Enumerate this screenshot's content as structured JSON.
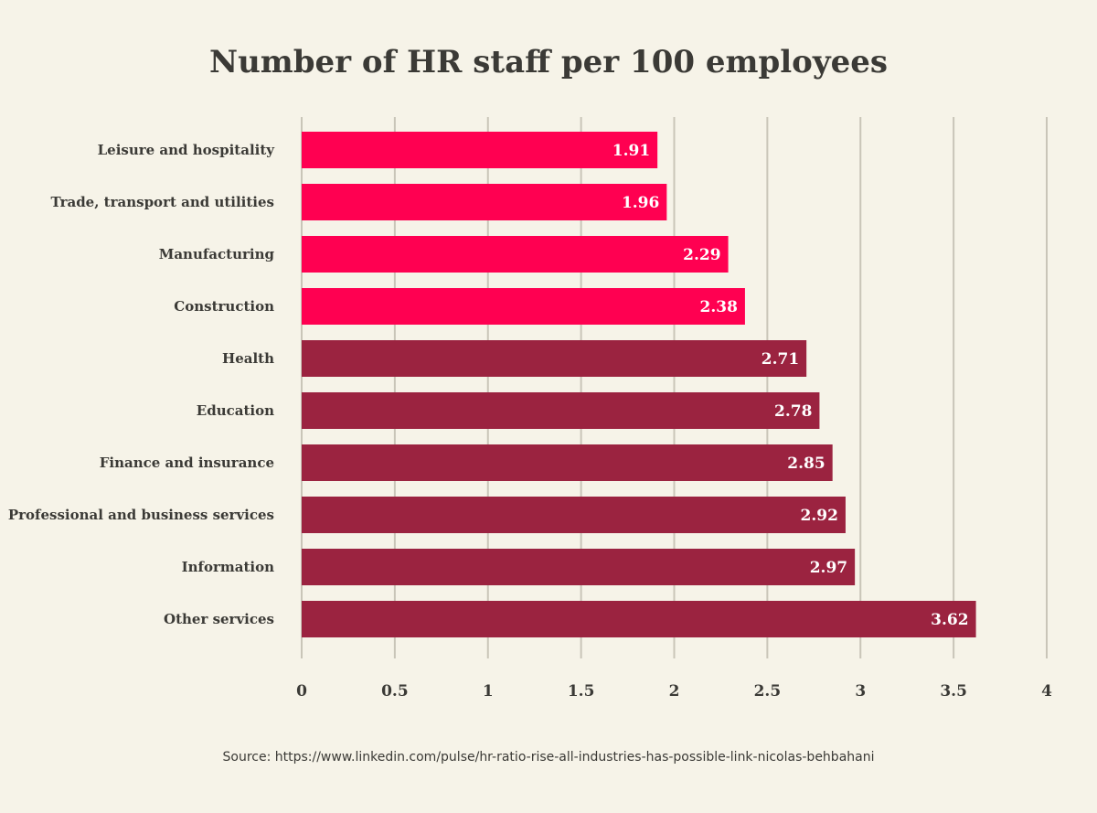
{
  "chart_data": {
    "type": "bar",
    "orientation": "horizontal",
    "title": "Number of HR staff per 100 employees",
    "categories": [
      "Leisure and hospitality",
      "Trade, transport and utilities",
      "Manufacturing",
      "Construction",
      "Health",
      "Education",
      "Finance and insurance",
      "Professional and business services",
      "Information",
      "Other services"
    ],
    "values": [
      1.91,
      1.96,
      2.29,
      2.38,
      2.71,
      2.78,
      2.85,
      2.92,
      2.97,
      3.62
    ],
    "value_labels": [
      "1.91",
      "1.96",
      "2.29",
      "2.38",
      "2.71",
      "2.78",
      "2.85",
      "2.92",
      "2.97",
      "3.62"
    ],
    "bar_colors": [
      "#ff0051",
      "#ff0051",
      "#ff0051",
      "#ff0051",
      "#9b2340",
      "#9b2340",
      "#9b2340",
      "#9b2340",
      "#9b2340",
      "#9b2340"
    ],
    "xlim": [
      0,
      4
    ],
    "xticks": [
      0,
      0.5,
      1,
      1.5,
      2,
      2.5,
      3,
      3.5,
      4
    ],
    "xtick_labels": [
      "0",
      "0.5",
      "1",
      "1.5",
      "2",
      "2.5",
      "3",
      "3.5",
      "4"
    ],
    "grid": true,
    "gridline_color": "#c9c5b8",
    "legend": "none",
    "xlabel": "",
    "ylabel": ""
  },
  "source": "Source: https://www.linkedin.com/pulse/hr-ratio-rise-all-industries-has-possible-link-nicolas-behbahani"
}
